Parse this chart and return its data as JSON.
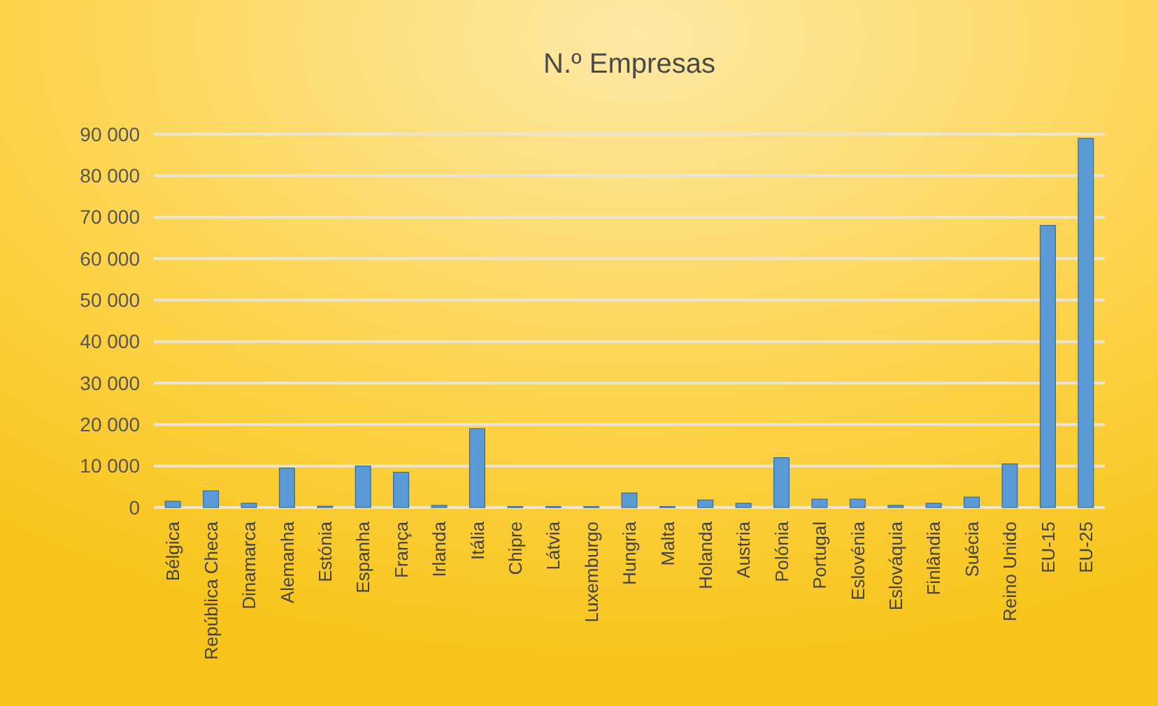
{
  "chart_data": {
    "type": "bar",
    "title": "N.º Empresas",
    "categories": [
      "Bélgica",
      "República Checa",
      "Dinamarca",
      "Alemanha",
      "Estónia",
      "Espanha",
      "França",
      "Irlanda",
      "Itália",
      "Chipre",
      "Látvia",
      "Luxemburgo",
      "Hungria",
      "Malta",
      "Holanda",
      "Austria",
      "Polónia",
      "Portugal",
      "Eslovénia",
      "Eslováquia",
      "Finlândia",
      "Suécia",
      "Reino Unido",
      "EU-15",
      "EU-25"
    ],
    "values": [
      1500,
      4000,
      1000,
      9500,
      300,
      10000,
      8500,
      500,
      19000,
      200,
      200,
      200,
      3500,
      200,
      1800,
      1000,
      12000,
      2000,
      2000,
      500,
      1000,
      2500,
      10500,
      68000,
      89000
    ],
    "color": "#5b9bd5",
    "ylim": [
      0,
      90000
    ],
    "yticks": [
      {
        "value": 0,
        "label": "0"
      },
      {
        "value": 10000,
        "label": "10 000"
      },
      {
        "value": 20000,
        "label": "20 000"
      },
      {
        "value": 30000,
        "label": "30 000"
      },
      {
        "value": 40000,
        "label": "40 000"
      },
      {
        "value": 50000,
        "label": "50 000"
      },
      {
        "value": 60000,
        "label": "60 000"
      },
      {
        "value": 70000,
        "label": "70 000"
      },
      {
        "value": 80000,
        "label": "80 000"
      },
      {
        "value": 90000,
        "label": "90 000"
      }
    ],
    "grid": true
  }
}
